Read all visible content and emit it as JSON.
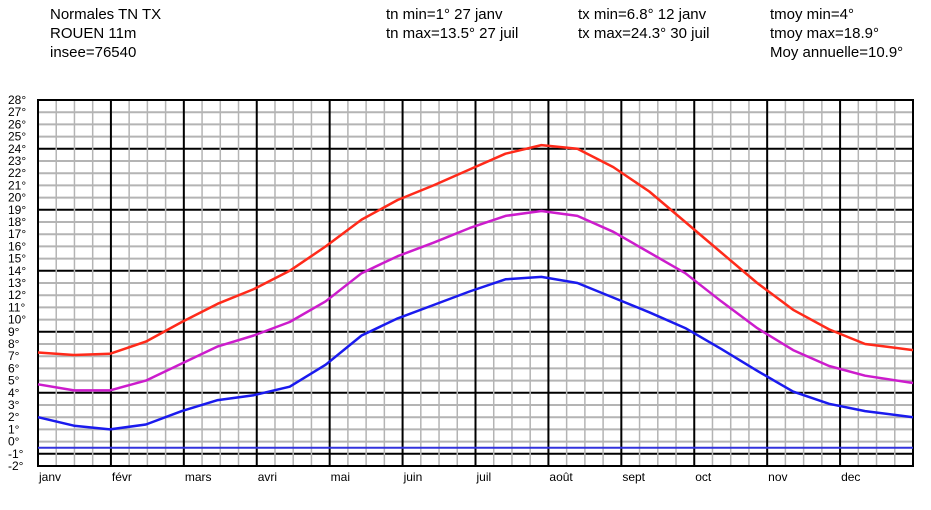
{
  "header": {
    "col1": [
      "Normales TN TX",
      "ROUEN 11m",
      "insee=76540"
    ],
    "col2": [
      "tn min=1° 27 janv",
      "tn max=13.5° 27 juil"
    ],
    "col3": [
      "tx min=6.8° 12 janv",
      "tx max=24.3° 30 juil"
    ],
    "col4": [
      "tmoy min=4°",
      "tmoy max=18.9°",
      "Moy annuelle=10.9°"
    ]
  },
  "chart_data": {
    "type": "line",
    "x_months": [
      "janv",
      "févr",
      "mars",
      "avri",
      "mai",
      "juin",
      "juil",
      "août",
      "sept",
      "oct",
      "nov",
      "dec"
    ],
    "y_ticks": [
      "28°",
      "27°",
      "26°",
      "25°",
      "24°",
      "23°",
      "22°",
      "21°",
      "20°",
      "19°",
      "18°",
      "17°",
      "16°",
      "15°",
      "14°",
      "13°",
      "12°",
      "11°",
      "10°",
      "9°",
      "8°",
      "7°",
      "6°",
      "5°",
      "4°",
      "3°",
      "2°",
      "1°",
      "0°",
      "-1°",
      "-2°"
    ],
    "ylim": [
      -2,
      28
    ],
    "x_unit_days": 365,
    "series": [
      {
        "name": "tx",
        "color": "#ff2a1a",
        "x": [
          0,
          15,
          30,
          45,
          60,
          75,
          90,
          105,
          120,
          135,
          150,
          165,
          180,
          195,
          210,
          225,
          240,
          255,
          270,
          285,
          300,
          315,
          330,
          345,
          365
        ],
        "y": [
          7.3,
          7.1,
          7.2,
          8.2,
          9.8,
          11.3,
          12.5,
          14.0,
          16.0,
          18.2,
          19.8,
          21.0,
          22.3,
          23.6,
          24.3,
          24.0,
          22.5,
          20.5,
          18.0,
          15.5,
          13.0,
          10.8,
          9.2,
          8.0,
          7.5
        ],
        "labels": []
      },
      {
        "name": "tmoy",
        "color": "#cc1ccc",
        "x": [
          0,
          15,
          30,
          45,
          60,
          75,
          90,
          105,
          120,
          135,
          150,
          165,
          180,
          195,
          210,
          225,
          240,
          255,
          270,
          285,
          300,
          315,
          330,
          345,
          365
        ],
        "y": [
          4.7,
          4.2,
          4.2,
          5.0,
          6.4,
          7.8,
          8.7,
          9.8,
          11.5,
          13.8,
          15.2,
          16.3,
          17.5,
          18.5,
          18.9,
          18.5,
          17.2,
          15.5,
          13.8,
          11.5,
          9.3,
          7.5,
          6.2,
          5.4,
          4.8
        ],
        "labels": []
      },
      {
        "name": "tn",
        "color": "#1a1aee",
        "x": [
          0,
          15,
          30,
          45,
          60,
          75,
          90,
          105,
          120,
          135,
          150,
          165,
          180,
          195,
          210,
          225,
          240,
          255,
          270,
          285,
          300,
          315,
          330,
          345,
          365
        ],
        "y": [
          2.0,
          1.3,
          1.0,
          1.4,
          2.5,
          3.4,
          3.8,
          4.5,
          6.3,
          8.7,
          10.1,
          11.2,
          12.3,
          13.3,
          13.5,
          13.0,
          11.8,
          10.6,
          9.3,
          7.6,
          5.8,
          4.1,
          3.1,
          2.5,
          2.0
        ],
        "labels": []
      },
      {
        "name": "ref",
        "color": "#3333dd",
        "x": [
          0,
          365
        ],
        "y": [
          -0.5,
          -0.5
        ],
        "labels": []
      }
    ],
    "grid": true
  }
}
